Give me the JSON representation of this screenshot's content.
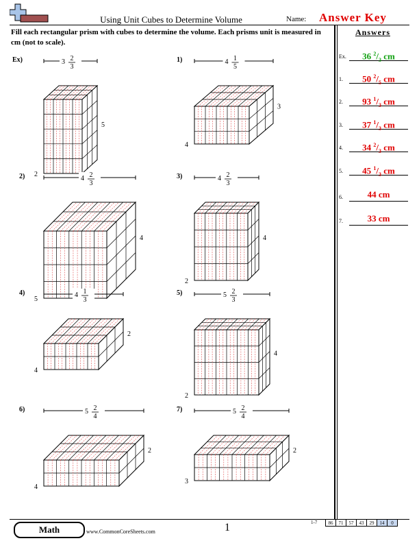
{
  "header": {
    "title": "Using Unit Cubes to Determine Volume",
    "name_label": "Name:",
    "answer_key": "Answer Key"
  },
  "instructions": "Fill each rectangular prism with cubes to determine the volume. Each prisms unit is measured in cm (not to scale).",
  "answers": {
    "heading": "Answers",
    "items": [
      {
        "num": "Ex.",
        "whole": "36",
        "num_frac": "2",
        "den": "3",
        "unit": "cm",
        "color": "#10a010"
      },
      {
        "num": "1.",
        "whole": "50",
        "num_frac": "2",
        "den": "5",
        "unit": "cm",
        "color": "#e00000"
      },
      {
        "num": "2.",
        "whole": "93",
        "num_frac": "1",
        "den": "3",
        "unit": "cm",
        "color": "#e00000"
      },
      {
        "num": "3.",
        "whole": "37",
        "num_frac": "1",
        "den": "3",
        "unit": "cm",
        "color": "#e00000"
      },
      {
        "num": "4.",
        "whole": "34",
        "num_frac": "2",
        "den": "3",
        "unit": "cm",
        "color": "#e00000"
      },
      {
        "num": "5.",
        "whole": "45",
        "num_frac": "1",
        "den": "3",
        "unit": "cm",
        "color": "#e00000"
      },
      {
        "num": "6.",
        "whole": "44",
        "num_frac": "",
        "den": "",
        "unit": "cm",
        "color": "#e00000"
      },
      {
        "num": "7.",
        "whole": "33",
        "num_frac": "",
        "den": "",
        "unit": "cm",
        "color": "#e00000"
      }
    ]
  },
  "problems": [
    {
      "label": "Ex)",
      "top_whole": "3",
      "top_num": "2",
      "top_den": "3",
      "side": "5",
      "depth": "2"
    },
    {
      "label": "1)",
      "top_whole": "4",
      "top_num": "1",
      "top_den": "5",
      "side": "3",
      "depth": "4"
    },
    {
      "label": "2)",
      "top_whole": "4",
      "top_num": "2",
      "top_den": "3",
      "side": "4",
      "depth": "5"
    },
    {
      "label": "3)",
      "top_whole": "4",
      "top_num": "2",
      "top_den": "3",
      "side": "4",
      "depth": "2"
    },
    {
      "label": "4)",
      "top_whole": "4",
      "top_num": "1",
      "top_den": "3",
      "side": "2",
      "depth": "4"
    },
    {
      "label": "5)",
      "top_whole": "5",
      "top_num": "2",
      "top_den": "3",
      "side": "4",
      "depth": "2"
    },
    {
      "label": "6)",
      "top_whole": "5",
      "top_num": "2",
      "top_den": "4",
      "side": "2",
      "depth": "4"
    },
    {
      "label": "7)",
      "top_whole": "5",
      "top_num": "2",
      "top_den": "4",
      "side": "2",
      "depth": "3"
    }
  ],
  "footer": {
    "subject": "Math",
    "site": "www.CommonCoreSheets.com",
    "page": "1",
    "score_range": "1-7",
    "scores": [
      "86",
      "71",
      "57",
      "43",
      "29",
      "14",
      "0"
    ]
  },
  "colors": {
    "accent_red": "#e00000",
    "accent_green": "#10a010",
    "grid_red": "#e05050"
  }
}
